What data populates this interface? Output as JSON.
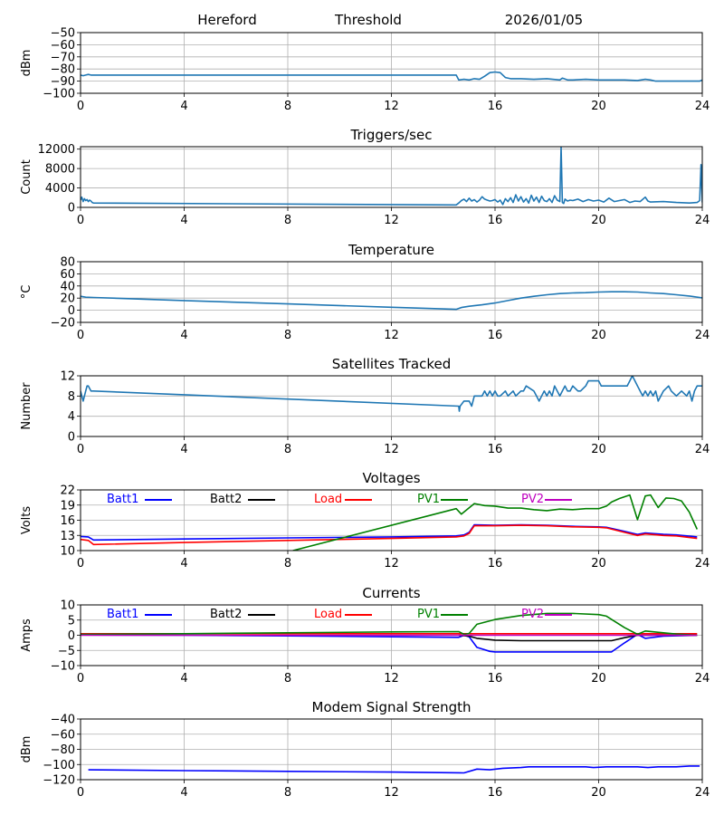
{
  "header": {
    "station": "Hereford",
    "mode": "Threshold",
    "date": "2026/01/05"
  },
  "chart_data": [
    {
      "id": "threshold",
      "type": "line",
      "title": "",
      "xlabel": "",
      "ylabel": "dBm",
      "xlim": [
        0,
        24
      ],
      "ylim": [
        -100,
        -50
      ],
      "xticks": [
        0,
        4,
        8,
        12,
        16,
        20,
        24
      ],
      "yticks": [
        -100,
        -90,
        -80,
        -70,
        -60,
        -50
      ],
      "ytick_labels": [
        "−100",
        "−90",
        "−80",
        "−70",
        "−60",
        "−50"
      ],
      "grid": true,
      "series": [
        {
          "name": "Threshold",
          "color": "#1f77b4",
          "x": [
            0,
            0.1,
            0.2,
            0.3,
            0.4,
            0.5,
            14.5,
            14.6,
            14.8,
            15.0,
            15.2,
            15.4,
            15.6,
            15.8,
            16.0,
            16.2,
            16.4,
            16.6,
            17.0,
            17.5,
            18.0,
            18.5,
            18.6,
            18.8,
            19.0,
            19.5,
            20.0,
            20.5,
            21.0,
            21.5,
            21.8,
            22.0,
            22.2,
            23.0,
            23.9,
            24.0
          ],
          "y": [
            -85,
            -85.5,
            -85,
            -84.5,
            -85,
            -85,
            -85,
            -89,
            -88.5,
            -89,
            -88,
            -88.5,
            -86,
            -83,
            -82.5,
            -83,
            -87,
            -88,
            -88,
            -88.5,
            -88,
            -89,
            -87.5,
            -89,
            -89,
            -88.5,
            -89,
            -89,
            -89,
            -89.5,
            -88.5,
            -89,
            -90,
            -90,
            -90,
            -89
          ]
        }
      ]
    },
    {
      "id": "triggers",
      "type": "line",
      "title": "Triggers/sec",
      "xlabel": "",
      "ylabel": "Count",
      "xlim": [
        0,
        24
      ],
      "ylim": [
        0,
        12500
      ],
      "xticks": [
        0,
        4,
        8,
        12,
        16,
        20,
        24
      ],
      "yticks": [
        0,
        4000,
        8000,
        12000
      ],
      "ytick_labels": [
        "0",
        "4000",
        "8000",
        "12000"
      ],
      "grid": true,
      "series": [
        {
          "name": "Triggers",
          "color": "#1f77b4",
          "x": [
            0,
            0.05,
            0.1,
            0.15,
            0.2,
            0.25,
            0.3,
            0.35,
            0.4,
            0.45,
            0.5,
            14.5,
            14.6,
            14.7,
            14.8,
            14.9,
            15.0,
            15.1,
            15.2,
            15.3,
            15.4,
            15.5,
            15.6,
            15.7,
            15.8,
            15.9,
            16.0,
            16.1,
            16.2,
            16.3,
            16.4,
            16.5,
            16.6,
            16.7,
            16.8,
            16.9,
            17.0,
            17.1,
            17.2,
            17.3,
            17.4,
            17.5,
            17.6,
            17.7,
            17.8,
            17.9,
            18.0,
            18.1,
            18.2,
            18.3,
            18.4,
            18.5,
            18.55,
            18.6,
            18.65,
            18.7,
            18.8,
            18.9,
            19.0,
            19.2,
            19.4,
            19.6,
            19.8,
            20.0,
            20.2,
            20.4,
            20.6,
            20.8,
            21.0,
            21.2,
            21.4,
            21.6,
            21.8,
            21.9,
            22.0,
            22.5,
            23.0,
            23.5,
            23.8,
            23.9,
            23.95,
            24.0
          ],
          "y": [
            1500,
            2100,
            1200,
            1800,
            1400,
            1600,
            1200,
            1500,
            1300,
            1000,
            900,
            500,
            900,
            1400,
            1700,
            1200,
            1900,
            1300,
            1600,
            1100,
            1500,
            2200,
            1700,
            1500,
            1300,
            1400,
            1600,
            1100,
            1500,
            600,
            1800,
            1200,
            2000,
            1000,
            2600,
            1300,
            2200,
            1100,
            1800,
            900,
            2500,
            1300,
            2100,
            1000,
            2300,
            1400,
            1200,
            1800,
            1000,
            2400,
            1500,
            1200,
            12500,
            1000,
            800,
            1700,
            1300,
            1500,
            1400,
            1700,
            1200,
            1600,
            1300,
            1500,
            1100,
            1900,
            1200,
            1400,
            1600,
            1000,
            1300,
            1200,
            2100,
            1300,
            1100,
            1200,
            1000,
            900,
            1000,
            1400,
            8800,
            1000
          ]
        }
      ]
    },
    {
      "id": "temperature",
      "type": "line",
      "title": "Temperature",
      "xlabel": "",
      "ylabel": "°C",
      "xlim": [
        0,
        24
      ],
      "ylim": [
        -20,
        80
      ],
      "xticks": [
        0,
        4,
        8,
        12,
        16,
        20,
        24
      ],
      "yticks": [
        -20,
        0,
        20,
        40,
        60,
        80
      ],
      "ytick_labels": [
        "−20",
        "0",
        "20",
        "40",
        "60",
        "80"
      ],
      "grid": true,
      "series": [
        {
          "name": "Temperature",
          "color": "#1f77b4",
          "x": [
            0,
            0.2,
            0.5,
            4,
            8,
            12,
            14.5,
            14.7,
            15.0,
            15.5,
            16.0,
            16.5,
            17.0,
            17.5,
            18.0,
            18.5,
            19.0,
            19.5,
            20.0,
            20.5,
            21.0,
            21.5,
            22.0,
            22.5,
            23.0,
            23.5,
            24.0
          ],
          "y": [
            23,
            21.5,
            21,
            16,
            10.5,
            5,
            1.5,
            4.5,
            6.5,
            9,
            12,
            16,
            20,
            23,
            25.5,
            27.5,
            28.5,
            29,
            30,
            30.5,
            30.5,
            30,
            28.5,
            27.5,
            25.5,
            23.5,
            20.5
          ]
        }
      ]
    },
    {
      "id": "satellites",
      "type": "line",
      "title": "Satellites Tracked",
      "xlabel": "",
      "ylabel": "Number",
      "xlim": [
        0,
        24
      ],
      "ylim": [
        0,
        12
      ],
      "xticks": [
        0,
        4,
        8,
        12,
        16,
        20,
        24
      ],
      "yticks": [
        0,
        4,
        8,
        12
      ],
      "ytick_labels": [
        "0",
        "4",
        "8",
        "12"
      ],
      "grid": true,
      "series": [
        {
          "name": "Satellites",
          "color": "#1f77b4",
          "x": [
            0,
            0.05,
            0.1,
            0.15,
            0.2,
            0.25,
            0.3,
            0.4,
            0.45,
            0.5,
            14.6,
            14.62,
            14.65,
            14.8,
            15.0,
            15.1,
            15.2,
            15.5,
            15.6,
            15.7,
            15.8,
            15.9,
            16.0,
            16.1,
            16.2,
            16.4,
            16.5,
            16.7,
            16.8,
            17.0,
            17.1,
            17.2,
            17.5,
            17.6,
            17.7,
            17.8,
            17.9,
            18.0,
            18.1,
            18.2,
            18.3,
            18.4,
            18.5,
            18.6,
            18.7,
            18.8,
            18.9,
            19.0,
            19.2,
            19.3,
            19.5,
            19.6,
            20.0,
            20.1,
            21.1,
            21.2,
            21.3,
            21.4,
            21.5,
            21.6,
            21.7,
            21.8,
            21.9,
            22.0,
            22.1,
            22.2,
            22.3,
            22.4,
            22.5,
            22.7,
            22.8,
            23.0,
            23.2,
            23.4,
            23.5,
            23.6,
            23.7,
            23.8,
            24.0
          ],
          "y": [
            9,
            8,
            7,
            8,
            9,
            10,
            10,
            9,
            9,
            9,
            6,
            5,
            6,
            7,
            7,
            6,
            8,
            8,
            9,
            8,
            9,
            8,
            9,
            8,
            8,
            9,
            8,
            9,
            8,
            9,
            9,
            10,
            9,
            8,
            7,
            8,
            9,
            8,
            9,
            8,
            10,
            9,
            8,
            9,
            10,
            9,
            9,
            10,
            9,
            9,
            10,
            11,
            11,
            10,
            10,
            11,
            12,
            11,
            10,
            9,
            8,
            9,
            8,
            9,
            8,
            9,
            7,
            8,
            9,
            10,
            9,
            8,
            9,
            8,
            9,
            7,
            9,
            10,
            10
          ]
        }
      ]
    },
    {
      "id": "voltages",
      "type": "line",
      "title": "Voltages",
      "xlabel": "",
      "ylabel": "Volts",
      "xlim": [
        0,
        24
      ],
      "ylim": [
        10,
        22
      ],
      "xticks": [
        0,
        4,
        8,
        12,
        16,
        20,
        24
      ],
      "yticks": [
        10,
        13,
        16,
        19,
        22
      ],
      "ytick_labels": [
        "10",
        "13",
        "16",
        "19",
        "22"
      ],
      "grid": true,
      "legend": "top-inline",
      "series": [
        {
          "name": "Batt1",
          "color": "#0000ff",
          "x": [
            0,
            0.3,
            0.5,
            4,
            8,
            12,
            14.5,
            14.8,
            15.0,
            15.2,
            16,
            17,
            18,
            19,
            20,
            20.3,
            21,
            21.5,
            21.8,
            22.5,
            23,
            23.8
          ],
          "y": [
            12.8,
            12.7,
            12.1,
            12.3,
            12.5,
            12.7,
            12.9,
            13.1,
            13.6,
            15.1,
            15.0,
            15.1,
            15.0,
            14.8,
            14.7,
            14.6,
            13.8,
            13.2,
            13.5,
            13.2,
            13.1,
            12.7
          ]
        },
        {
          "name": "Batt2",
          "color": "#000000",
          "x": [],
          "y": []
        },
        {
          "name": "Load",
          "color": "#ff0000",
          "x": [
            0,
            0.3,
            0.5,
            4,
            8,
            12,
            14.5,
            14.8,
            15.0,
            15.2,
            16,
            17,
            18,
            19,
            20,
            20.3,
            21,
            21.5,
            21.8,
            22.5,
            23,
            23.8
          ],
          "y": [
            12.2,
            12.0,
            11.2,
            11.6,
            12.0,
            12.4,
            12.7,
            12.9,
            13.4,
            14.9,
            14.9,
            15.0,
            14.9,
            14.7,
            14.6,
            14.5,
            13.6,
            13.0,
            13.3,
            13.0,
            12.9,
            12.4
          ]
        },
        {
          "name": "PV1",
          "color": "#008000",
          "x": [
            8.2,
            14.5,
            14.7,
            15.2,
            15.6,
            16,
            16.5,
            17,
            17.5,
            18,
            18.5,
            19,
            19.5,
            20,
            20.3,
            20.5,
            20.8,
            21.2,
            21.5,
            21.8,
            22.0,
            22.3,
            22.6,
            22.9,
            23.2,
            23.5,
            23.8
          ],
          "y": [
            10,
            18.3,
            17.2,
            19.3,
            18.9,
            18.8,
            18.4,
            18.4,
            18.1,
            17.9,
            18.2,
            18.1,
            18.3,
            18.3,
            18.8,
            19.6,
            20.3,
            21.0,
            16.1,
            20.8,
            21.0,
            18.5,
            20.4,
            20.3,
            19.8,
            17.6,
            14.2
          ]
        },
        {
          "name": "PV2",
          "color": "#bf00bf",
          "x": [],
          "y": []
        }
      ]
    },
    {
      "id": "currents",
      "type": "line",
      "title": "Currents",
      "xlabel": "",
      "ylabel": "Amps",
      "xlim": [
        0,
        24
      ],
      "ylim": [
        -10,
        10
      ],
      "xticks": [
        0,
        4,
        8,
        12,
        16,
        20,
        24
      ],
      "yticks": [
        -10,
        -5,
        0,
        5,
        10
      ],
      "ytick_labels": [
        "−10",
        "−5",
        "0",
        "5",
        "10"
      ],
      "grid": true,
      "legend": "top-inline",
      "series": [
        {
          "name": "Batt1",
          "color": "#0000ff",
          "x": [
            0,
            4,
            8,
            12,
            14.6,
            14.8,
            15.0,
            15.3,
            15.8,
            16,
            17,
            18,
            19,
            20,
            20.5,
            21,
            21.5,
            21.8,
            22.5,
            23.8
          ],
          "y": [
            0.1,
            0.0,
            -0.2,
            -0.5,
            -0.7,
            0.0,
            -0.5,
            -4.0,
            -5.3,
            -5.5,
            -5.5,
            -5.5,
            -5.5,
            -5.5,
            -5.5,
            -2.5,
            0.3,
            -1.0,
            -0.3,
            0.0
          ]
        },
        {
          "name": "Batt2",
          "color": "#000000",
          "x": [
            14.6,
            15.0,
            15.3,
            16,
            17,
            18,
            19,
            20,
            20.5,
            21,
            21.5,
            22,
            23.8
          ],
          "y": [
            0.0,
            -0.3,
            -1.0,
            -1.6,
            -1.8,
            -1.8,
            -1.8,
            -1.8,
            -1.8,
            -0.8,
            0.0,
            0.0,
            0.0
          ]
        },
        {
          "name": "Load",
          "color": "#ff0000",
          "x": [
            0,
            4,
            8,
            12,
            16,
            20,
            23.8
          ],
          "y": [
            0.5,
            0.5,
            0.5,
            0.5,
            0.5,
            0.5,
            0.5
          ]
        },
        {
          "name": "PV1",
          "color": "#008000",
          "x": [
            0,
            4,
            8,
            12,
            14.6,
            14.8,
            15.0,
            15.3,
            16,
            17,
            18,
            19,
            20,
            20.3,
            21,
            21.5,
            21.8,
            22.5,
            23,
            23.8
          ],
          "y": [
            0.3,
            0.5,
            0.8,
            1.1,
            1.2,
            0.3,
            0.6,
            3.6,
            5.2,
            6.5,
            7.2,
            7.2,
            6.8,
            6.3,
            2.5,
            0.3,
            1.4,
            0.8,
            0.4,
            0.0
          ]
        },
        {
          "name": "PV2",
          "color": "#bf00bf",
          "x": [
            0,
            4,
            8,
            12,
            16,
            20,
            23.8
          ],
          "y": [
            0.0,
            0.0,
            0.0,
            0.0,
            0.0,
            0.0,
            0.0
          ]
        }
      ]
    },
    {
      "id": "modem",
      "type": "line",
      "title": "Modem Signal Strength",
      "xlabel": "",
      "ylabel": "dBm",
      "xlim": [
        0,
        24
      ],
      "ylim": [
        -120,
        -40
      ],
      "xticks": [
        0,
        4,
        8,
        12,
        16,
        20,
        24
      ],
      "yticks": [
        -120,
        -100,
        -80,
        -60,
        -40
      ],
      "ytick_labels": [
        "−120",
        "−100",
        "−80",
        "−60",
        "−40"
      ],
      "grid": true,
      "series": [
        {
          "name": "Modem",
          "color": "#0000ff",
          "x": [
            0.3,
            4,
            8,
            12,
            14.8,
            15.3,
            15.8,
            16.3,
            17,
            17.3,
            18,
            19,
            19.5,
            19.8,
            20.3,
            21,
            21.5,
            21.9,
            22.3,
            23,
            23.5,
            23.9
          ],
          "y": [
            -107,
            -108,
            -109,
            -110,
            -111,
            -106,
            -107,
            -105,
            -104,
            -103,
            -103,
            -103,
            -103,
            -104,
            -103,
            -103,
            -103,
            -104,
            -103,
            -103,
            -102,
            -102
          ]
        }
      ]
    }
  ]
}
